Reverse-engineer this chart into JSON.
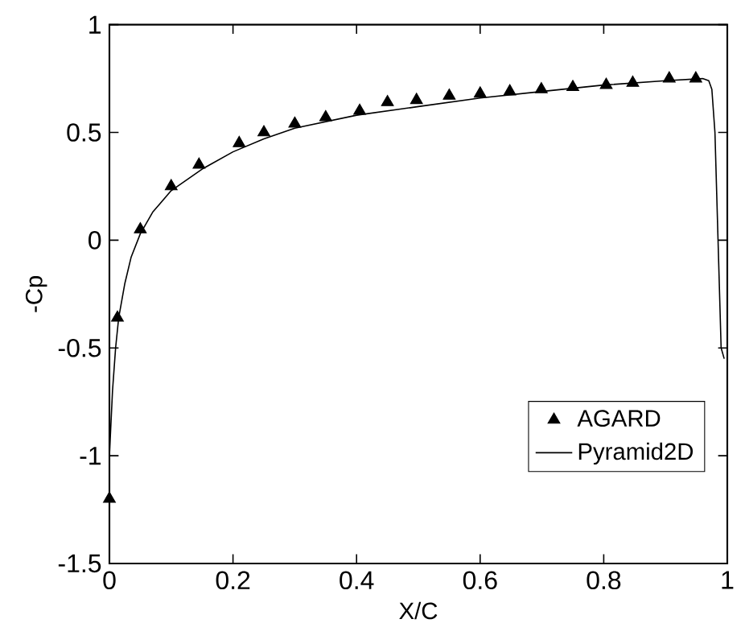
{
  "chart_data": {
    "type": "line",
    "xlabel": "X/C",
    "ylabel": "-Cp",
    "xlim": [
      0,
      1
    ],
    "ylim": [
      -1.5,
      1
    ],
    "xticks": [
      0,
      0.2,
      0.4,
      0.6,
      0.8,
      1
    ],
    "yticks": [
      -1.5,
      -1,
      -0.5,
      0,
      0.5,
      1
    ],
    "legend": "bottom right",
    "grid": false,
    "series": [
      {
        "name": "AGARD",
        "type": "scatter",
        "marker": "triangle",
        "color": "#000000",
        "x": [
          0,
          0.013,
          0.05,
          0.1,
          0.145,
          0.21,
          0.25,
          0.3,
          0.35,
          0.405,
          0.45,
          0.497,
          0.55,
          0.6,
          0.648,
          0.699,
          0.75,
          0.804,
          0.847,
          0.906,
          0.949
        ],
        "values": [
          -1.2,
          -0.36,
          0.05,
          0.25,
          0.35,
          0.45,
          0.5,
          0.54,
          0.57,
          0.6,
          0.64,
          0.65,
          0.67,
          0.68,
          0.69,
          0.7,
          0.71,
          0.72,
          0.73,
          0.75,
          0.75
        ]
      },
      {
        "name": "Pyramid2D",
        "type": "line",
        "line_style": "solid",
        "color": "#000000",
        "x": [
          0,
          0.005,
          0.01,
          0.015,
          0.025,
          0.035,
          0.05,
          0.07,
          0.1,
          0.15,
          0.2,
          0.25,
          0.3,
          0.4,
          0.5,
          0.6,
          0.7,
          0.8,
          0.9,
          0.96,
          0.97,
          0.975,
          0.98,
          0.985,
          0.99,
          0.995
        ],
        "values": [
          -1.0,
          -0.7,
          -0.5,
          -0.36,
          -0.2,
          -0.08,
          0.03,
          0.13,
          0.23,
          0.33,
          0.41,
          0.47,
          0.52,
          0.58,
          0.62,
          0.66,
          0.69,
          0.72,
          0.74,
          0.75,
          0.74,
          0.7,
          0.5,
          0.0,
          -0.5,
          -0.55
        ]
      }
    ]
  }
}
